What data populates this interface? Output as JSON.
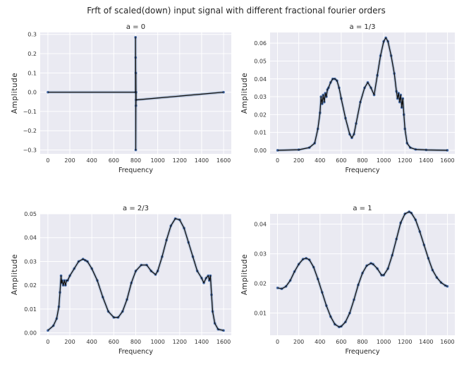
{
  "figure": {
    "title": "Frft of scaled(down) input signal with different fractional fourier orders"
  },
  "colors": {
    "background": "#eaeaf2",
    "grid": "#ffffff",
    "line": "#111111",
    "marker": "#4c72b0",
    "halo": "#aabbd6"
  },
  "chart_data": [
    {
      "type": "line",
      "title": "a = 0",
      "xlabel": "Frequency",
      "ylabel": "Amplitude",
      "xlim": [
        -70,
        1670
      ],
      "ylim": [
        -0.32,
        0.31
      ],
      "xticks": [
        0,
        200,
        400,
        600,
        800,
        1000,
        1200,
        1400,
        1600
      ],
      "yticks": [
        -0.3,
        -0.2,
        -0.1,
        0.0,
        0.1,
        0.2,
        0.3
      ],
      "ytick_labels": [
        "−0.3",
        "−0.2",
        "−0.1",
        "0.0",
        "0.1",
        "0.2",
        "0.3"
      ],
      "grid": true,
      "series": [
        {
          "style": "line_with_markers",
          "x": [
            0,
            798,
            798,
            799,
            799,
            800,
            800,
            801,
            801,
            802,
            802,
            803,
            803,
            1600
          ],
          "y": [
            0.0,
            0.0,
            0.285,
            0.0,
            0.18,
            0.0,
            -0.3,
            0.0,
            0.1,
            0.0,
            -0.07,
            0.0,
            -0.04,
            0.0
          ]
        }
      ]
    },
    {
      "type": "line",
      "title": "a = 1/3",
      "xlabel": "Frequency",
      "ylabel": "Amplitude",
      "xlim": [
        -70,
        1670
      ],
      "ylim": [
        -0.002,
        0.066
      ],
      "xticks": [
        0,
        200,
        400,
        600,
        800,
        1000,
        1200,
        1400,
        1600
      ],
      "yticks": [
        0.0,
        0.01,
        0.02,
        0.03,
        0.04,
        0.05,
        0.06
      ],
      "ytick_labels": [
        "0.00",
        "0.01",
        "0.02",
        "0.03",
        "0.04",
        "0.05",
        "0.06"
      ],
      "grid": true,
      "series": [
        {
          "style": "line_with_markers",
          "x": [
            0,
            200,
            300,
            350,
            380,
            400,
            410,
            420,
            430,
            440,
            450,
            460,
            470,
            480,
            500,
            520,
            540,
            560,
            580,
            600,
            640,
            680,
            700,
            720,
            740,
            780,
            820,
            850,
            880,
            910,
            940,
            970,
            1000,
            1020,
            1040,
            1070,
            1100,
            1120,
            1130,
            1140,
            1150,
            1160,
            1170,
            1180,
            1190,
            1200,
            1220,
            1250,
            1300,
            1400,
            1600
          ],
          "y": [
            0.0,
            0.0003,
            0.0015,
            0.004,
            0.012,
            0.021,
            0.03,
            0.026,
            0.031,
            0.027,
            0.032,
            0.03,
            0.034,
            0.035,
            0.038,
            0.04,
            0.04,
            0.039,
            0.035,
            0.029,
            0.018,
            0.009,
            0.007,
            0.009,
            0.015,
            0.027,
            0.035,
            0.038,
            0.035,
            0.031,
            0.042,
            0.053,
            0.061,
            0.063,
            0.061,
            0.053,
            0.043,
            0.033,
            0.029,
            0.032,
            0.027,
            0.031,
            0.024,
            0.029,
            0.02,
            0.012,
            0.004,
            0.0015,
            0.0005,
            0.0002,
            0.0
          ]
        }
      ]
    },
    {
      "type": "line",
      "title": "a = 2/3",
      "xlabel": "Frequency",
      "ylabel": "Amplitude",
      "xlim": [
        -70,
        1670
      ],
      "ylim": [
        -0.001,
        0.05
      ],
      "xticks": [
        0,
        200,
        400,
        600,
        800,
        1000,
        1200,
        1400,
        1600
      ],
      "yticks": [
        0.0,
        0.01,
        0.02,
        0.03,
        0.04,
        0.05
      ],
      "ytick_labels": [
        "0.00",
        "0.01",
        "0.02",
        "0.03",
        "0.04",
        "0.05"
      ],
      "grid": true,
      "series": [
        {
          "style": "line_with_markers",
          "x": [
            0,
            50,
            80,
            100,
            110,
            120,
            125,
            130,
            140,
            150,
            160,
            170,
            180,
            200,
            240,
            280,
            320,
            340,
            360,
            400,
            450,
            500,
            550,
            600,
            640,
            680,
            720,
            760,
            800,
            850,
            900,
            940,
            980,
            1000,
            1040,
            1080,
            1120,
            1160,
            1200,
            1240,
            1280,
            1320,
            1360,
            1400,
            1420,
            1440,
            1460,
            1470,
            1480,
            1490,
            1500,
            1520,
            1550,
            1600
          ],
          "y": [
            0.001,
            0.003,
            0.006,
            0.011,
            0.017,
            0.024,
            0.021,
            0.022,
            0.02,
            0.022,
            0.02,
            0.022,
            0.022,
            0.024,
            0.027,
            0.03,
            0.031,
            0.0305,
            0.03,
            0.027,
            0.022,
            0.015,
            0.009,
            0.0065,
            0.0065,
            0.009,
            0.014,
            0.021,
            0.026,
            0.0285,
            0.0285,
            0.026,
            0.0245,
            0.026,
            0.032,
            0.039,
            0.045,
            0.048,
            0.0475,
            0.044,
            0.038,
            0.032,
            0.026,
            0.023,
            0.021,
            0.023,
            0.024,
            0.022,
            0.024,
            0.016,
            0.009,
            0.004,
            0.0015,
            0.001
          ]
        }
      ]
    },
    {
      "type": "line",
      "title": "a = 1",
      "xlabel": "Frequency",
      "ylabel": "Amplitude",
      "xlim": [
        -70,
        1670
      ],
      "ylim": [
        0.0025,
        0.0435
      ],
      "xticks": [
        0,
        200,
        400,
        600,
        800,
        1000,
        1200,
        1400,
        1600
      ],
      "yticks": [
        0.01,
        0.02,
        0.03,
        0.04
      ],
      "ytick_labels": [
        "0.01",
        "0.02",
        "0.03",
        "0.04"
      ],
      "grid": true,
      "series": [
        {
          "style": "line_with_markers",
          "x": [
            0,
            40,
            80,
            120,
            160,
            200,
            240,
            270,
            300,
            340,
            380,
            420,
            460,
            500,
            540,
            580,
            600,
            640,
            680,
            720,
            760,
            800,
            840,
            880,
            900,
            940,
            980,
            1000,
            1040,
            1080,
            1120,
            1160,
            1200,
            1240,
            1260,
            1300,
            1340,
            1380,
            1420,
            1460,
            1500,
            1540,
            1580,
            1600
          ],
          "y": [
            0.0185,
            0.0182,
            0.019,
            0.021,
            0.024,
            0.0265,
            0.0282,
            0.0285,
            0.028,
            0.0255,
            0.0215,
            0.017,
            0.0125,
            0.0088,
            0.0062,
            0.0053,
            0.0055,
            0.007,
            0.01,
            0.0145,
            0.0195,
            0.0235,
            0.026,
            0.0268,
            0.0265,
            0.025,
            0.0228,
            0.0228,
            0.025,
            0.0295,
            0.035,
            0.0405,
            0.0435,
            0.0442,
            0.0438,
            0.0415,
            0.0375,
            0.033,
            0.0285,
            0.0245,
            0.022,
            0.0203,
            0.0193,
            0.019
          ]
        }
      ]
    }
  ]
}
